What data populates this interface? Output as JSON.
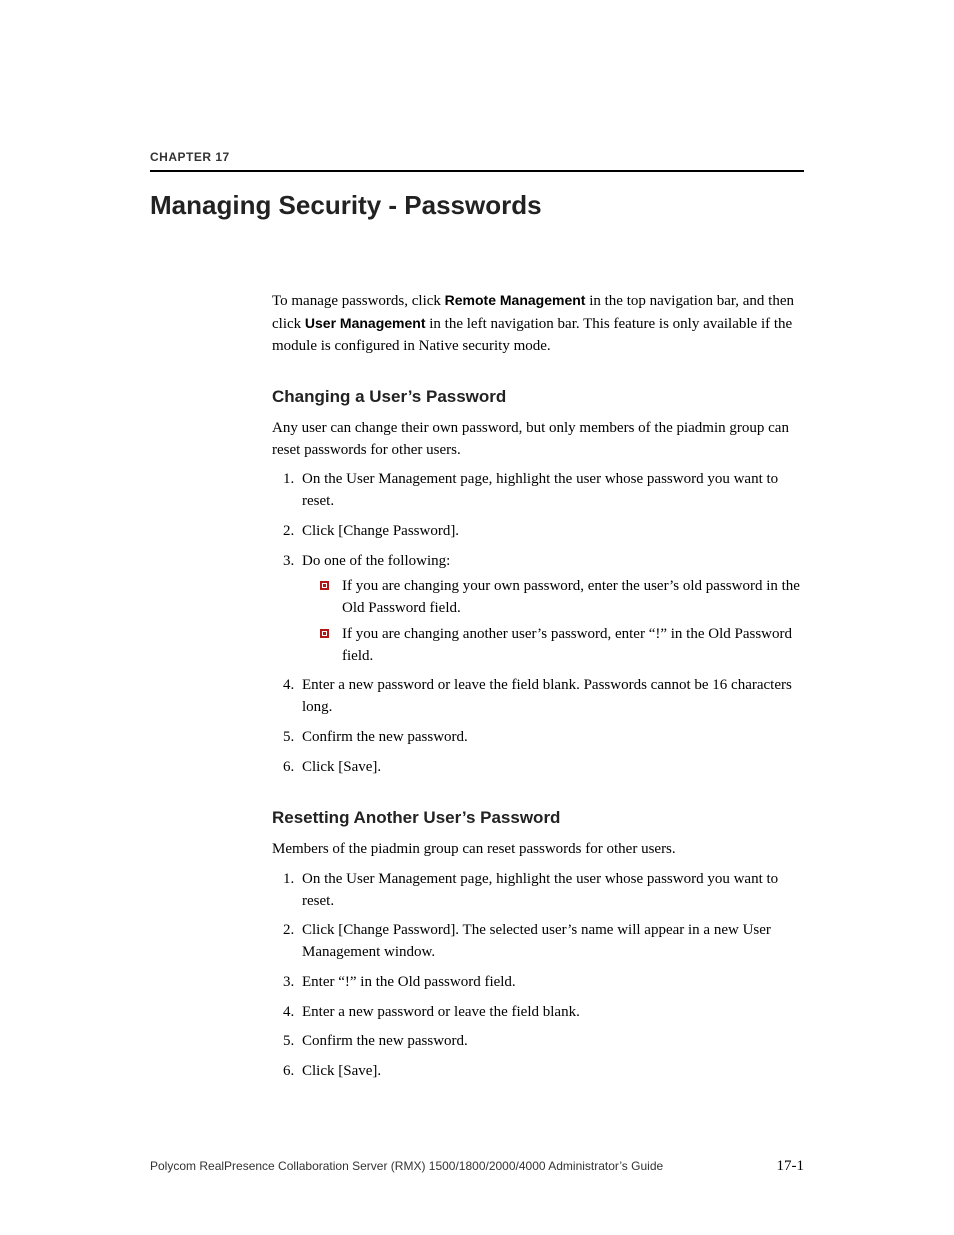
{
  "header": {
    "chapter_label": "CHAPTER 17",
    "chapter_title": "Managing Security - Passwords"
  },
  "intro": {
    "part1": "To manage passwords, click ",
    "bold1": "Remote Management",
    "part2": " in the top navigation bar, and then click ",
    "bold2": "User Management",
    "part3": " in the left navigation bar. This feature is only available if the module is configured in Native security mode."
  },
  "section_change": {
    "heading": "Changing a User’s Password",
    "lead": "Any user can change their own password, but only members of the piadmin group can reset passwords for other users.",
    "steps": {
      "s1": "On the User Management page, highlight the user whose password you want to reset.",
      "s2": "Click [Change Password].",
      "s3": "Do one of the following:",
      "s3_b1": "If you are changing your own password, enter the user’s old password in the Old Password field.",
      "s3_b2": "If you are changing another user’s password, enter “!” in the Old Password field.",
      "s4": "Enter a new password or leave the field blank. Passwords cannot be 16 characters long.",
      "s5": "Confirm the new password.",
      "s6": "Click [Save]."
    }
  },
  "section_reset": {
    "heading": "Resetting Another User’s Password",
    "lead": "Members of the piadmin group can reset passwords for other users.",
    "steps": {
      "s1": "On the User Management page, highlight the user whose password you want to reset.",
      "s2": "Click [Change Password]. The selected user’s name will appear in a new User Management window.",
      "s3": "Enter “!” in the Old password field.",
      "s4": "Enter a new password or leave the field blank.",
      "s5": "Confirm the new password.",
      "s6": "Click [Save]."
    }
  },
  "footer": {
    "doc_title": "Polycom RealPresence Collaboration Server (RMX) 1500/1800/2000/4000 Administrator’s Guide",
    "page_number": "17-1"
  },
  "colors": {
    "bullet_accent": "#b01818",
    "rule": "#000000",
    "text": "#000000",
    "heading_gray": "#333333"
  },
  "typography": {
    "body_font": "Times New Roman",
    "heading_font": "Arial",
    "body_size_pt": 11,
    "h1_size_pt": 20,
    "h2_size_pt": 13,
    "chapter_label_size_pt": 9
  }
}
